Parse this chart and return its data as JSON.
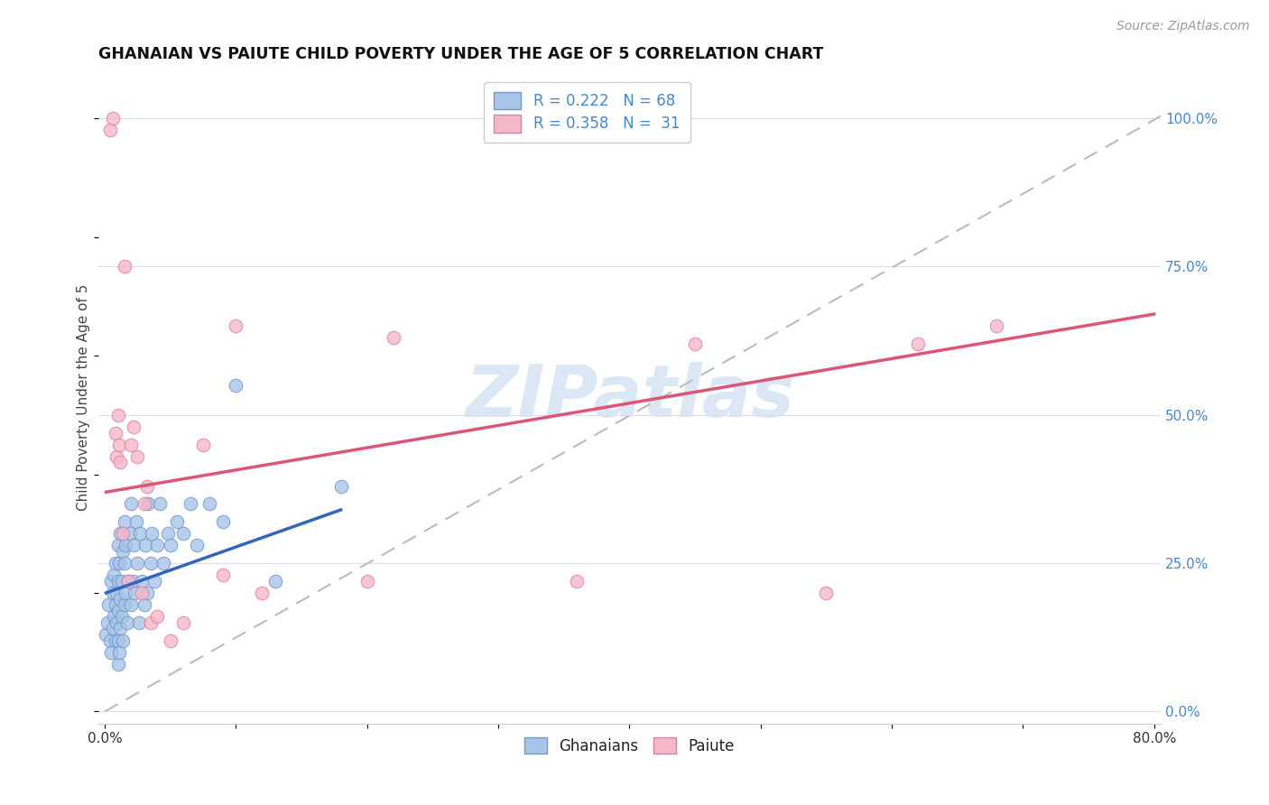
{
  "title": "GHANAIAN VS PAIUTE CHILD POVERTY UNDER THE AGE OF 5 CORRELATION CHART",
  "source_text": "Source: ZipAtlas.com",
  "ylabel": "Child Poverty Under the Age of 5",
  "xlabel": "",
  "xlim": [
    -0.005,
    0.805
  ],
  "ylim": [
    -0.02,
    1.08
  ],
  "xticks": [
    0.0,
    0.1,
    0.2,
    0.3,
    0.4,
    0.5,
    0.6,
    0.7,
    0.8
  ],
  "xticklabels": [
    "0.0%",
    "",
    "",
    "",
    "",
    "",
    "",
    "",
    "80.0%"
  ],
  "ytick_positions": [
    0.0,
    0.25,
    0.5,
    0.75,
    1.0
  ],
  "ytick_labels_right": [
    "0.0%",
    "25.0%",
    "50.0%",
    "75.0%",
    "100.0%"
  ],
  "legend_blue_label": "R = 0.222   N = 68",
  "legend_pink_label": "R = 0.358   N =  31",
  "blue_color": "#a8c4e8",
  "pink_color": "#f5b8c8",
  "blue_edge": "#7099cc",
  "pink_edge": "#e080a0",
  "trend_blue": "#3366bb",
  "trend_pink": "#dd5577",
  "ref_line_color": "#bbbbbb",
  "watermark_color": "#c5d8f0",
  "watermark_text": "ZIPatlas",
  "ghanaian_x": [
    0.001,
    0.002,
    0.003,
    0.004,
    0.005,
    0.005,
    0.006,
    0.006,
    0.007,
    0.007,
    0.008,
    0.008,
    0.008,
    0.009,
    0.009,
    0.01,
    0.01,
    0.01,
    0.01,
    0.01,
    0.011,
    0.011,
    0.012,
    0.012,
    0.012,
    0.013,
    0.013,
    0.014,
    0.014,
    0.015,
    0.015,
    0.015,
    0.016,
    0.016,
    0.017,
    0.018,
    0.019,
    0.02,
    0.02,
    0.021,
    0.022,
    0.023,
    0.024,
    0.025,
    0.026,
    0.027,
    0.028,
    0.03,
    0.031,
    0.032,
    0.033,
    0.035,
    0.036,
    0.038,
    0.04,
    0.042,
    0.045,
    0.048,
    0.05,
    0.055,
    0.06,
    0.065,
    0.07,
    0.08,
    0.09,
    0.1,
    0.13,
    0.18
  ],
  "ghanaian_y": [
    0.13,
    0.15,
    0.18,
    0.12,
    0.1,
    0.22,
    0.14,
    0.2,
    0.16,
    0.23,
    0.12,
    0.18,
    0.25,
    0.15,
    0.2,
    0.08,
    0.12,
    0.17,
    0.22,
    0.28,
    0.1,
    0.25,
    0.14,
    0.19,
    0.3,
    0.16,
    0.22,
    0.12,
    0.27,
    0.18,
    0.25,
    0.32,
    0.2,
    0.28,
    0.15,
    0.22,
    0.3,
    0.18,
    0.35,
    0.22,
    0.28,
    0.2,
    0.32,
    0.25,
    0.15,
    0.3,
    0.22,
    0.18,
    0.28,
    0.2,
    0.35,
    0.25,
    0.3,
    0.22,
    0.28,
    0.35,
    0.25,
    0.3,
    0.28,
    0.32,
    0.3,
    0.35,
    0.28,
    0.35,
    0.32,
    0.55,
    0.22,
    0.38
  ],
  "paiute_x": [
    0.004,
    0.006,
    0.008,
    0.009,
    0.01,
    0.011,
    0.012,
    0.014,
    0.015,
    0.018,
    0.02,
    0.022,
    0.025,
    0.028,
    0.03,
    0.032,
    0.035,
    0.04,
    0.05,
    0.06,
    0.075,
    0.09,
    0.1,
    0.12,
    0.2,
    0.22,
    0.36,
    0.45,
    0.55,
    0.62,
    0.68
  ],
  "paiute_y": [
    0.98,
    1.0,
    0.47,
    0.43,
    0.5,
    0.45,
    0.42,
    0.3,
    0.75,
    0.22,
    0.45,
    0.48,
    0.43,
    0.2,
    0.35,
    0.38,
    0.15,
    0.16,
    0.12,
    0.15,
    0.45,
    0.23,
    0.65,
    0.2,
    0.22,
    0.63,
    0.22,
    0.62,
    0.2,
    0.62,
    0.65
  ],
  "blue_trend_x": [
    0.001,
    0.18
  ],
  "blue_trend_y": [
    0.2,
    0.34
  ],
  "pink_trend_x": [
    0.001,
    0.8
  ],
  "pink_trend_y": [
    0.37,
    0.67
  ]
}
